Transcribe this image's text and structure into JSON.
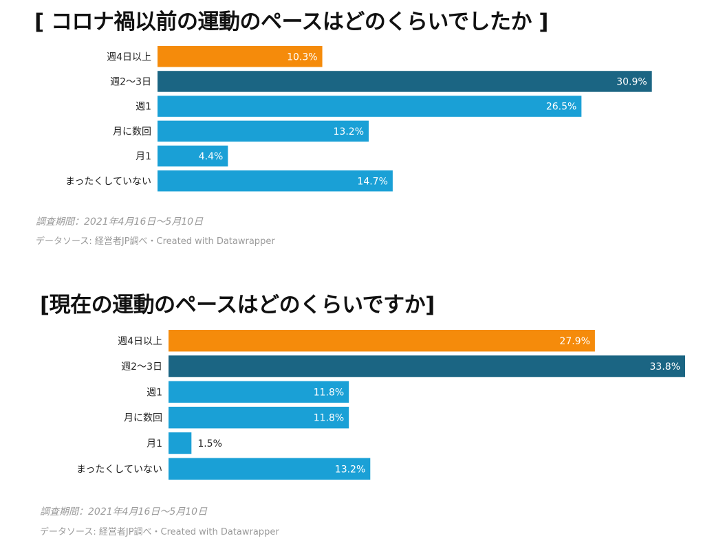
{
  "colors": {
    "highlight": "#f58b0b",
    "dark": "#1b6583",
    "bar": "#1aa0d6",
    "label_inside": "#ffffff",
    "label_outside": "#222222",
    "note": "#9a9a9a"
  },
  "chart_data": [
    {
      "type": "bar",
      "orientation": "horizontal",
      "title": "[ コロナ禍以前の運動のペースはどのくらいでしたか ]",
      "categories": [
        "週4日以上",
        "週2〜3日",
        "週1",
        "月に数回",
        "月1",
        "まったくしていない"
      ],
      "values": [
        10.3,
        30.9,
        26.5,
        13.2,
        4.4,
        14.7
      ],
      "value_labels": [
        "10.3%",
        "30.9%",
        "26.5%",
        "13.2%",
        "4.4%",
        "14.7%"
      ],
      "bar_colors": [
        "#f58b0b",
        "#1b6583",
        "#1aa0d6",
        "#1aa0d6",
        "#1aa0d6",
        "#1aa0d6"
      ],
      "xlim": [
        0,
        31
      ],
      "unit": "%",
      "grid": false,
      "legend": "none",
      "period_note": "調査期間：2021年4月16日〜5月10日",
      "source_note": "データソース: 経営者JP調べ・Created with Datawrapper"
    },
    {
      "type": "bar",
      "orientation": "horizontal",
      "title": "[現在の運動のペースはどのくらいですか]",
      "categories": [
        "週4日以上",
        "週2〜3日",
        "週1",
        "月に数回",
        "月1",
        "まったくしていない"
      ],
      "values": [
        27.9,
        33.8,
        11.8,
        11.8,
        1.5,
        13.2
      ],
      "value_labels": [
        "27.9%",
        "33.8%",
        "11.8%",
        "11.8%",
        "1.5%",
        "13.2%"
      ],
      "bar_colors": [
        "#f58b0b",
        "#1b6583",
        "#1aa0d6",
        "#1aa0d6",
        "#1aa0d6",
        "#1aa0d6"
      ],
      "xlim": [
        0,
        33.8
      ],
      "unit": "%",
      "grid": false,
      "legend": "none",
      "period_note": "調査期間：2021年4月16日〜5月10日",
      "source_note": "データソース: 経営者JP調べ・Created with Datawrapper"
    }
  ]
}
